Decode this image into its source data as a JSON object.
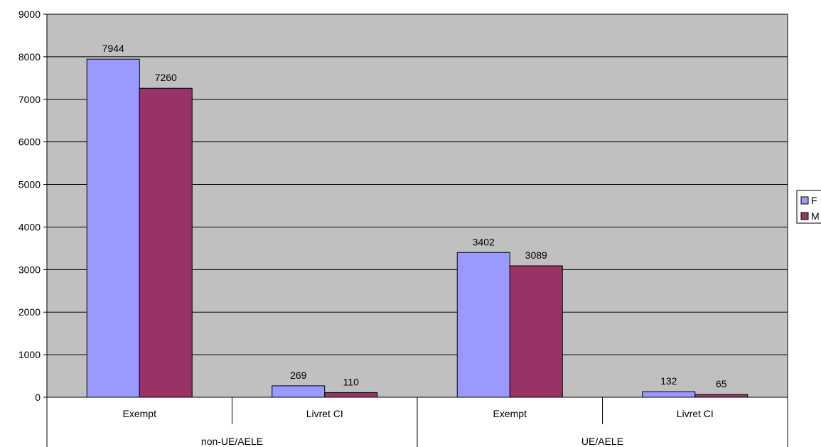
{
  "chart_data": {
    "type": "bar",
    "title": "",
    "xlabel": "",
    "ylabel": "",
    "ylim": [
      0,
      9000
    ],
    "yticks": [
      0,
      1000,
      2000,
      3000,
      4000,
      5000,
      6000,
      7000,
      8000,
      9000
    ],
    "grid": true,
    "legend_position": "right",
    "groups": [
      "non-UE/AELE",
      "UE/AELE"
    ],
    "categories": [
      "Exempt",
      "Livret CI",
      "Exempt",
      "Livret CI"
    ],
    "category_group": [
      0,
      0,
      1,
      1
    ],
    "series": [
      {
        "name": "F",
        "color": "#9999ff",
        "values": [
          7944,
          269,
          3402,
          132
        ]
      },
      {
        "name": "M",
        "color": "#993366",
        "values": [
          7260,
          110,
          3089,
          65
        ]
      }
    ]
  },
  "colors": {
    "plot_background": "#c0c0c0",
    "gridline": "#000000"
  }
}
